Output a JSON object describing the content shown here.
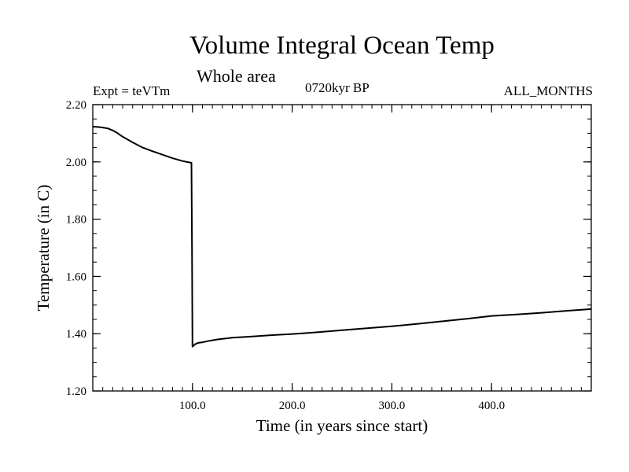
{
  "header": {
    "title": "Volume Integral Ocean Temp",
    "subtitle": "Whole area",
    "expt": "Expt = teVTm",
    "period": "0720kyr BP",
    "months": "ALL_MONTHS"
  },
  "chart_data": {
    "type": "line",
    "title": "Volume Integral Ocean Temp",
    "subtitle": "Whole area",
    "xlabel": "Time (in years since start)",
    "ylabel": "Temperature (in C)",
    "xlim": [
      0,
      500
    ],
    "ylim": [
      1.2,
      2.2
    ],
    "x_ticks": [
      100,
      200,
      300,
      400
    ],
    "x_tick_labels": [
      "100.0",
      "200.0",
      "300.0",
      "400.0"
    ],
    "y_ticks": [
      1.2,
      1.4,
      1.6,
      1.8,
      2.0,
      2.2
    ],
    "y_tick_labels": [
      "1.20",
      "1.40",
      "1.60",
      "1.80",
      "2.00",
      "2.20"
    ],
    "grid": false,
    "series": [
      {
        "x": [
          0,
          5,
          10,
          15,
          20,
          25,
          30,
          40,
          50,
          60,
          70,
          80,
          90,
          97,
          99,
          99.5,
          100,
          101,
          103,
          106,
          110,
          115,
          125,
          140,
          160,
          180,
          200,
          225,
          250,
          275,
          300,
          325,
          350,
          375,
          400,
          425,
          450,
          475,
          500
        ],
        "values": [
          2.123,
          2.122,
          2.12,
          2.117,
          2.11,
          2.1,
          2.088,
          2.068,
          2.05,
          2.037,
          2.025,
          2.013,
          2.003,
          1.998,
          1.997,
          1.7,
          1.355,
          1.358,
          1.364,
          1.368,
          1.37,
          1.374,
          1.38,
          1.386,
          1.39,
          1.395,
          1.399,
          1.405,
          1.412,
          1.419,
          1.426,
          1.434,
          1.443,
          1.452,
          1.462,
          1.467,
          1.473,
          1.48,
          1.486
        ]
      }
    ]
  }
}
